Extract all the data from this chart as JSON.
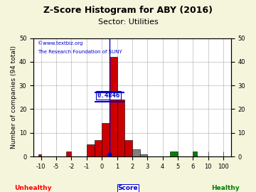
{
  "title": "Z-Score Histogram for ABY (2016)",
  "subtitle": "Sector: Utilities",
  "xlabel_score": "Score",
  "xlabel_unhealthy": "Unhealthy",
  "xlabel_healthy": "Healthy",
  "ylabel": "Number of companies (94 total)",
  "zscore_value": 0.4846,
  "watermark_line1": "©www.textbiz.org",
  "watermark_line2": "The Research Foundation of SUNY",
  "ylim": [
    0,
    50
  ],
  "yticks": [
    0,
    10,
    20,
    30,
    40,
    50
  ],
  "bg_color": "#f5f5dc",
  "plot_bg_color": "#ffffff",
  "grid_color": "#aaaaaa",
  "title_fontsize": 9,
  "subtitle_fontsize": 8,
  "label_fontsize": 6.5,
  "tick_fontsize": 6
}
